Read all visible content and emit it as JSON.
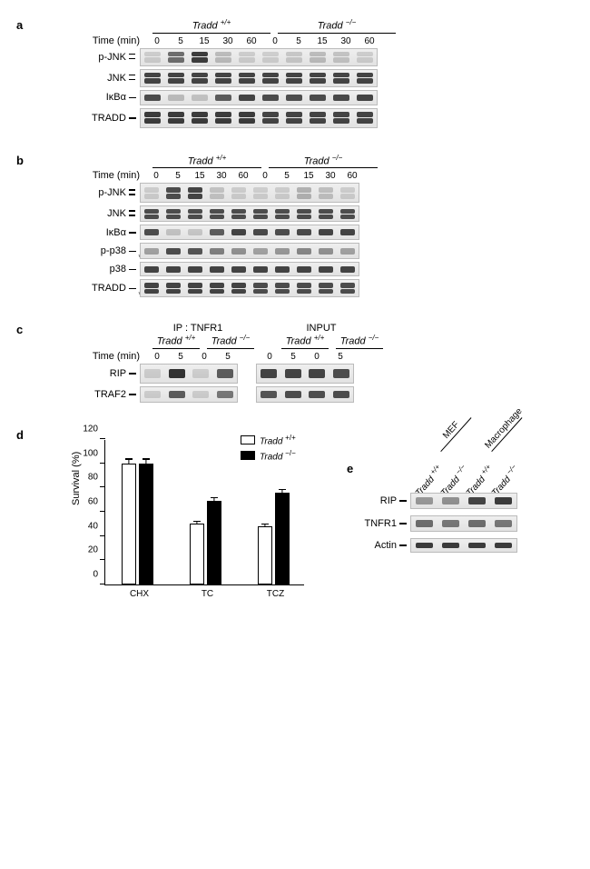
{
  "panel_a": {
    "label": "a",
    "genotypes": [
      "Tradd",
      "Tradd"
    ],
    "genotype_sup": [
      "+/+",
      "−/−"
    ],
    "time_label": "Time (min)",
    "times": [
      "0",
      "5",
      "15",
      "30",
      "60",
      "0",
      "5",
      "15",
      "30",
      "60"
    ],
    "rows": [
      {
        "label": "p-JNK",
        "tick": "double",
        "intensities": [
          0.05,
          0.6,
          0.9,
          0.15,
          0.05,
          0.03,
          0.08,
          0.15,
          0.1,
          0.05
        ],
        "height": 20,
        "double": true
      },
      {
        "label": "JNK",
        "tick": "double",
        "intensities": [
          0.85,
          0.85,
          0.85,
          0.85,
          0.85,
          0.85,
          0.85,
          0.85,
          0.85,
          0.85
        ],
        "height": 20,
        "double": true
      },
      {
        "label": "IκBα",
        "tick": "single",
        "intensities": [
          0.8,
          0.15,
          0.1,
          0.7,
          0.85,
          0.8,
          0.78,
          0.8,
          0.82,
          0.85
        ],
        "height": 17
      },
      {
        "label": "TRADD",
        "tick": "single",
        "intensities": [
          0.9,
          0.9,
          0.9,
          0.9,
          0.9,
          0.85,
          0.85,
          0.85,
          0.85,
          0.85
        ],
        "height": 22,
        "double": true
      }
    ],
    "lane_width": 26,
    "blot_width": 262
  },
  "panel_b": {
    "label": "b",
    "genotypes": [
      "Tradd",
      "Tradd"
    ],
    "genotype_sup": [
      "+/+",
      "−/−"
    ],
    "time_label": "Time (min)",
    "times": [
      "0",
      "5",
      "15",
      "30",
      "60",
      "0",
      "5",
      "15",
      "30",
      "60"
    ],
    "rows": [
      {
        "label": "p-JNK",
        "tick": "double",
        "intensities": [
          0.05,
          0.8,
          0.85,
          0.1,
          0.05,
          0.03,
          0.05,
          0.2,
          0.12,
          0.05
        ],
        "height": 22,
        "double": true
      },
      {
        "label": "JNK",
        "tick": "double",
        "intensities": [
          0.8,
          0.8,
          0.8,
          0.8,
          0.8,
          0.8,
          0.8,
          0.8,
          0.8,
          0.8
        ],
        "height": 18,
        "double": true
      },
      {
        "label": "IκBα",
        "tick": "single",
        "intensities": [
          0.8,
          0.1,
          0.08,
          0.7,
          0.85,
          0.82,
          0.8,
          0.82,
          0.85,
          0.85
        ],
        "height": 17
      },
      {
        "label": "p-p38",
        "tick": "single",
        "intensities": [
          0.3,
          0.8,
          0.75,
          0.5,
          0.4,
          0.3,
          0.35,
          0.45,
          0.4,
          0.3
        ],
        "height": 18,
        "star": "*"
      },
      {
        "label": "p38",
        "tick": "single",
        "intensities": [
          0.85,
          0.85,
          0.85,
          0.85,
          0.85,
          0.85,
          0.85,
          0.85,
          0.85,
          0.85
        ],
        "height": 16
      },
      {
        "label": "TRADD",
        "tick": "single",
        "intensities": [
          0.85,
          0.85,
          0.85,
          0.85,
          0.85,
          0.8,
          0.8,
          0.8,
          0.8,
          0.8
        ],
        "height": 20,
        "double": true,
        "star": "*"
      }
    ],
    "lane_width": 24,
    "blot_width": 242
  },
  "panel_c": {
    "label": "c",
    "ip_label": "IP : TNFR1",
    "input_label": "INPUT",
    "genotypes": [
      "Tradd",
      "Tradd",
      "Tradd",
      "Tradd"
    ],
    "genotype_sup": [
      "+/+",
      "−/−",
      "+/+",
      "−/−"
    ],
    "time_label": "Time (min)",
    "times": [
      "0",
      "5",
      "0",
      "5",
      "0",
      "5",
      "0",
      "5"
    ],
    "rows": [
      {
        "label": "RIP",
        "tick": "single",
        "ip": [
          0.05,
          0.95,
          0.03,
          0.7
        ],
        "input": [
          0.85,
          0.85,
          0.85,
          0.8
        ],
        "height": 22
      },
      {
        "label": "TRAF2",
        "tick": "single",
        "ip": [
          0.05,
          0.7,
          0.05,
          0.55
        ],
        "input": [
          0.75,
          0.8,
          0.78,
          0.8
        ],
        "height": 18
      }
    ],
    "lane_width": 26,
    "group_gap": 20,
    "blot_width": 108
  },
  "panel_d": {
    "label": "d",
    "type": "bar",
    "ylabel": "Survival (%)",
    "ylim": [
      0,
      120
    ],
    "ytick_step": 20,
    "categories": [
      "CHX",
      "TC",
      "TCZ"
    ],
    "series": [
      {
        "name": "Tradd",
        "sup": "+/+",
        "color": "#ffffff",
        "values": [
          100,
          50,
          48
        ],
        "err": [
          3,
          1.5,
          1.5
        ]
      },
      {
        "name": "Tradd",
        "sup": "−/−",
        "color": "#000000",
        "values": [
          100,
          69,
          76
        ],
        "err": [
          3,
          2,
          2
        ]
      }
    ],
    "axis_color": "#000000",
    "background": "#ffffff"
  },
  "panel_e": {
    "label": "e",
    "groups": [
      "MEF",
      "Macrophage"
    ],
    "genotypes": [
      "Tradd",
      "Tradd",
      "Tradd",
      "Tradd"
    ],
    "genotype_sup": [
      "+/+",
      "−/−",
      "+/+",
      "−/−"
    ],
    "rows": [
      {
        "label": "RIP",
        "tick": "single",
        "intensities": [
          0.35,
          0.4,
          0.85,
          0.9
        ],
        "height": 18
      },
      {
        "label": "TNFR1",
        "tick": "single",
        "intensities": [
          0.6,
          0.55,
          0.6,
          0.55
        ],
        "height": 18
      },
      {
        "label": "Actin",
        "tick": "single",
        "intensities": [
          0.9,
          0.9,
          0.9,
          0.9
        ],
        "height": 16
      }
    ],
    "lane_width": 28,
    "blot_width": 118
  }
}
